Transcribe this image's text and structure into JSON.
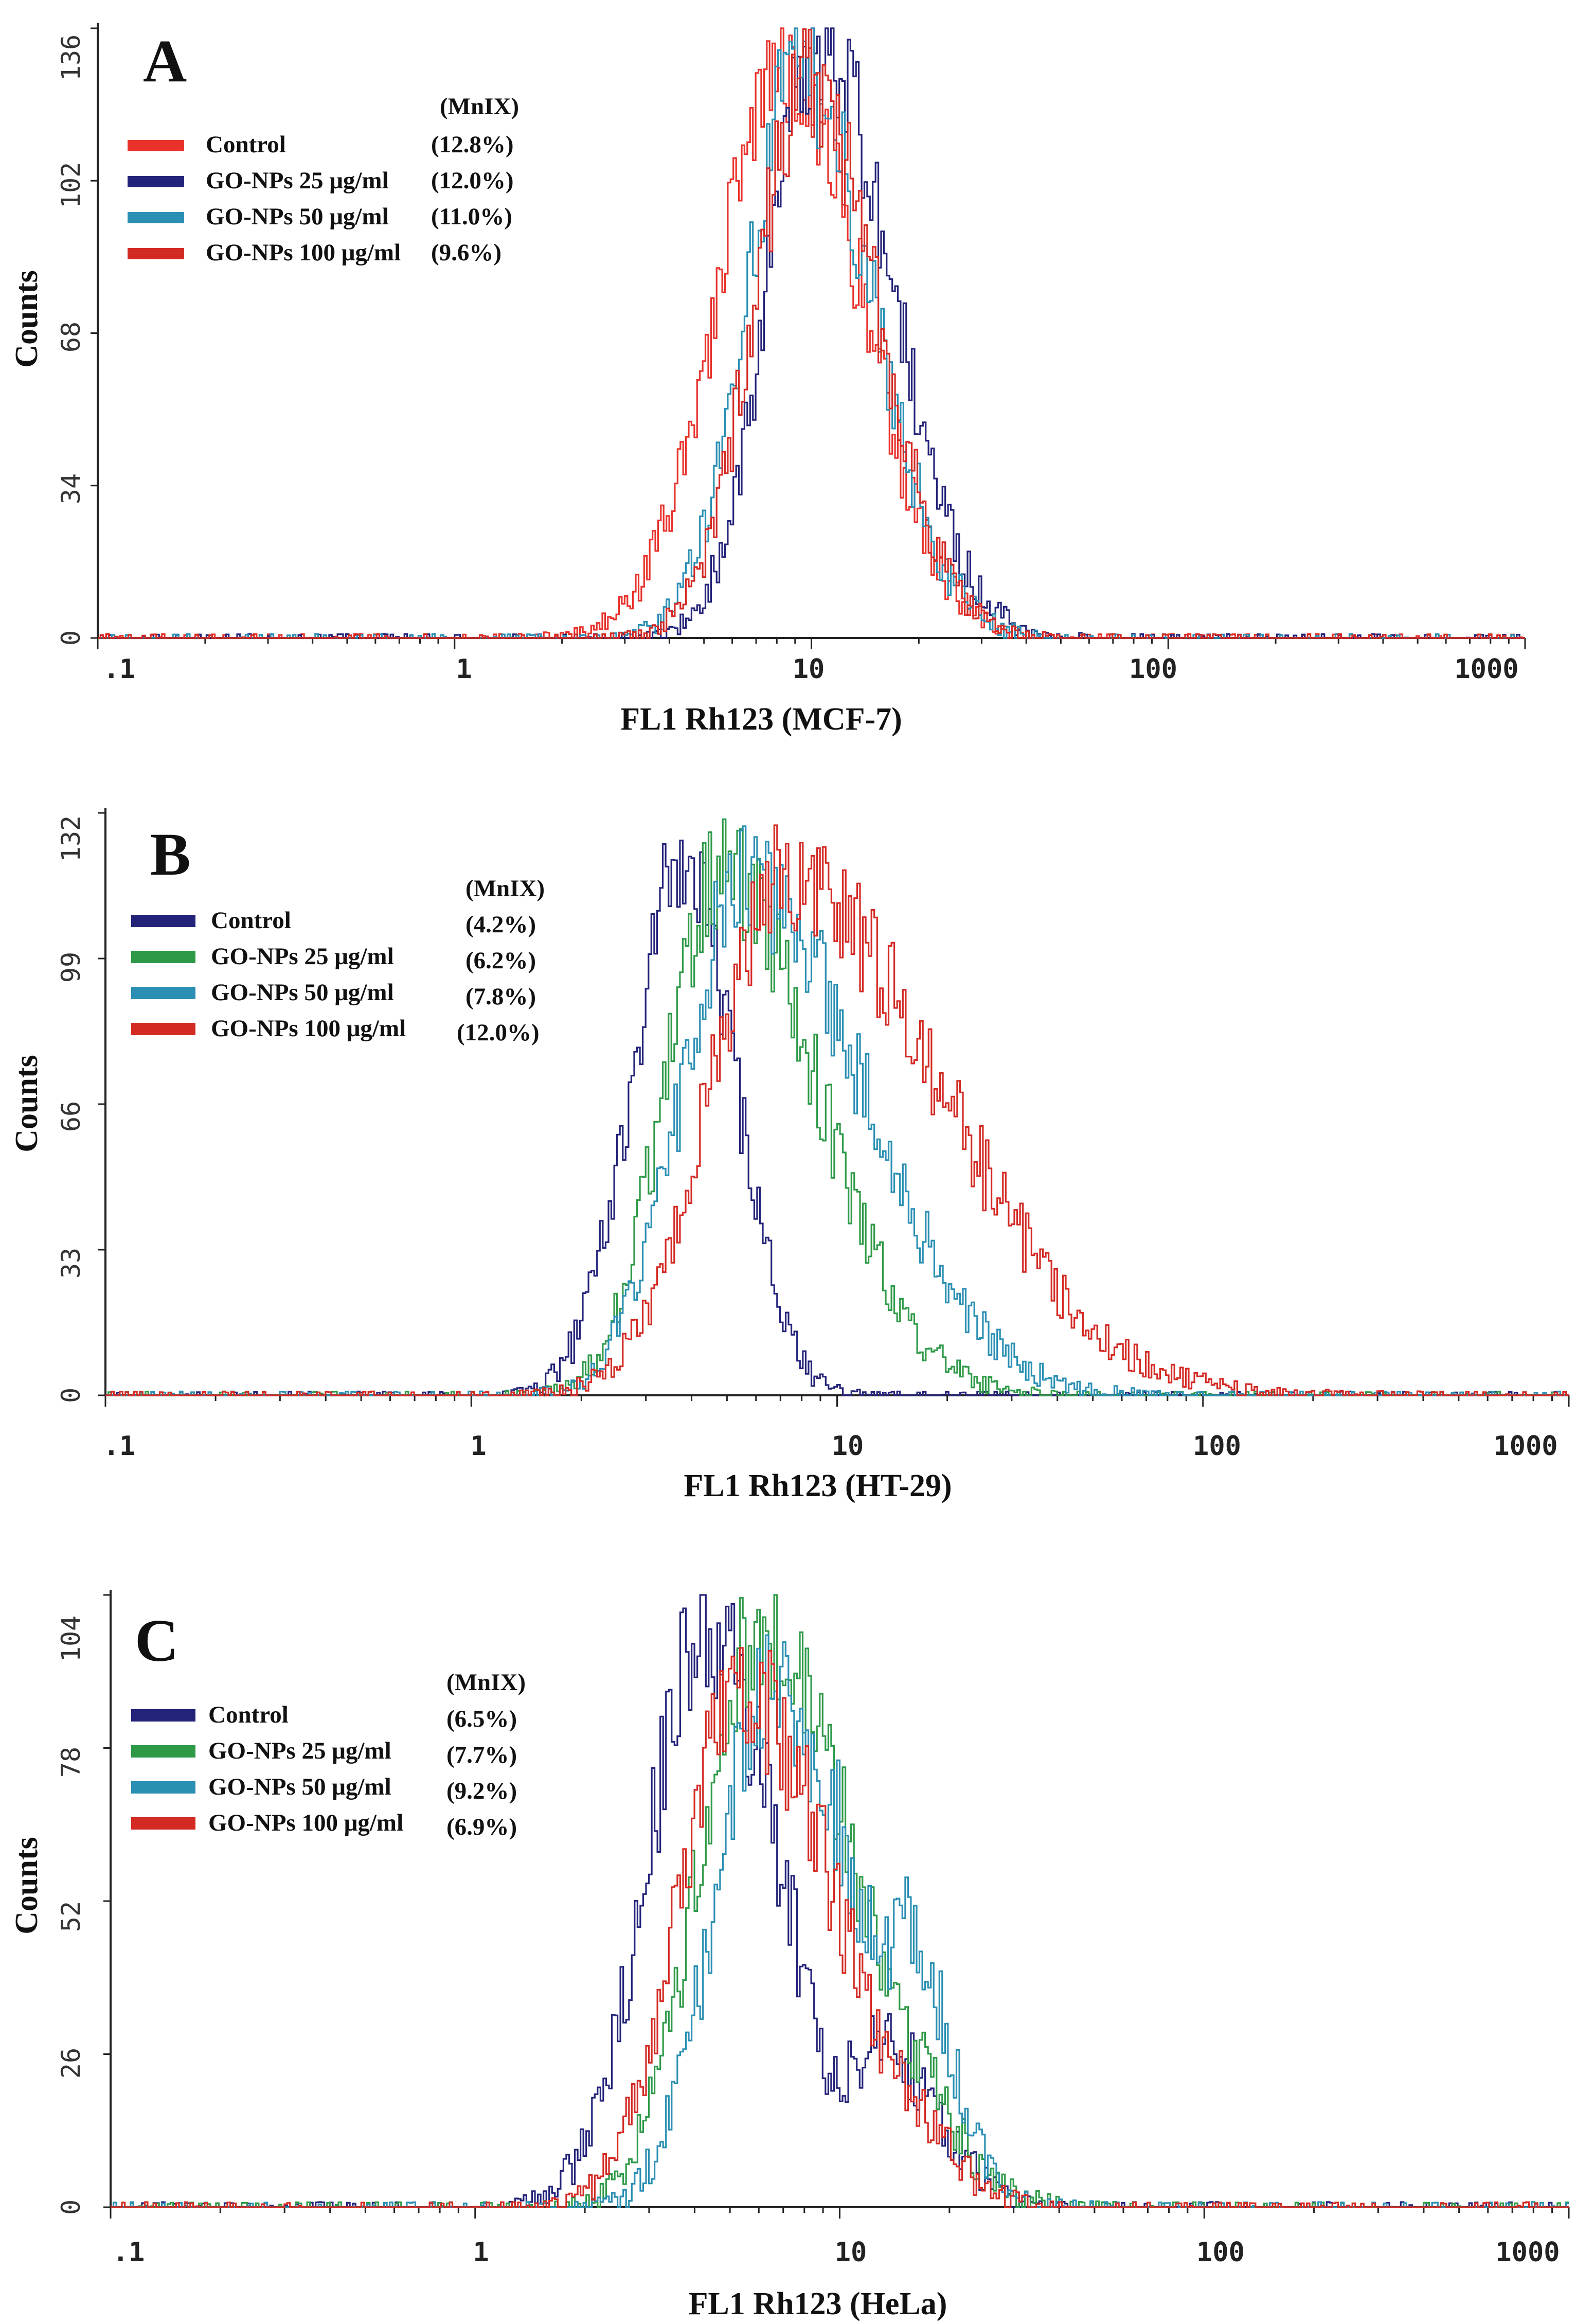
{
  "colors": {
    "control_red": "#e8322b",
    "navy": "#23237a",
    "teal": "#2a8fb3",
    "red": "#d42a24",
    "green": "#2e9a48",
    "orange": "#e86a1a",
    "axis": "#222222"
  },
  "chart_data": [
    {
      "type": "histogram",
      "panel": "A",
      "title": "",
      "xlabel": "FL1 Rh123 (MCF-7)",
      "ylabel": "Counts",
      "x_scale": "log",
      "xlim": [
        0.1,
        1000
      ],
      "ylim": [
        0,
        136
      ],
      "x_ticks": [
        ".1",
        "1",
        "10",
        "100",
        "1000"
      ],
      "y_ticks": [
        "0",
        "34",
        "68",
        "102",
        "136"
      ],
      "legend_header": "(MnIX)",
      "series": [
        {
          "name": "Control",
          "value_label": "(12.8%)",
          "color": "#e8322b",
          "peak_x": 8.5,
          "peak_y": 128,
          "sigma_left": 0.19,
          "sigma_right": 0.21
        },
        {
          "name": "GO-NPs 25 μg/ml",
          "value_label": "(12.0%)",
          "color": "#23237a",
          "peak_x": 10.5,
          "peak_y": 134,
          "sigma_left": 0.14,
          "sigma_right": 0.2
        },
        {
          "name": "GO-NPs 50 μg/ml",
          "value_label": "(11.0%)",
          "color": "#2a8fb3",
          "peak_x": 9.3,
          "peak_y": 127,
          "sigma_left": 0.15,
          "sigma_right": 0.2
        },
        {
          "name": "GO-NPs 100 μg/ml",
          "value_label": "(9.6%)",
          "color": "#d42a24",
          "peak_x": 9.8,
          "peak_y": 125,
          "sigma_left": 0.15,
          "sigma_right": 0.19
        }
      ]
    },
    {
      "type": "histogram",
      "panel": "B",
      "title": "",
      "xlabel": "FL1 Rh123 (HT-29)",
      "ylabel": "Counts",
      "x_scale": "log",
      "xlim": [
        0.1,
        1000
      ],
      "ylim": [
        0,
        132
      ],
      "x_ticks": [
        ".1",
        "1",
        "10",
        "100",
        "1000"
      ],
      "y_ticks": [
        "0",
        "33",
        "66",
        "99",
        "132"
      ],
      "legend_header": "(MnIX)",
      "series": [
        {
          "name": "Control",
          "value_label": "(4.2%)",
          "color": "#23237a",
          "peak_x": 3.8,
          "peak_y": 120,
          "sigma_left": 0.14,
          "sigma_right": 0.14
        },
        {
          "name": "GO-NPs 25 μg/ml",
          "value_label": "(6.2%)",
          "color": "#2e9a48",
          "peak_x": 4.8,
          "peak_y": 118,
          "sigma_left": 0.15,
          "sigma_right": 0.26
        },
        {
          "name": "GO-NPs 50 μg/ml",
          "value_label": "(7.8%)",
          "color": "#2a8fb3",
          "peak_x": 5.6,
          "peak_y": 116,
          "sigma_left": 0.17,
          "sigma_right": 0.32
        },
        {
          "name": "GO-NPs 100 μg/ml",
          "value_label": "(12.0%)",
          "color": "#d42a24",
          "peak_x": 7.2,
          "peak_y": 118,
          "sigma_left": 0.2,
          "sigma_right": 0.42
        }
      ]
    },
    {
      "type": "histogram",
      "panel": "C",
      "title": "",
      "xlabel": "FL1 Rh123 (HeLa)",
      "ylabel": "Counts",
      "x_scale": "log",
      "xlim": [
        0.1,
        1000
      ],
      "ylim": [
        0,
        104
      ],
      "x_ticks": [
        ".1",
        "1",
        "10",
        "100",
        "1000"
      ],
      "y_ticks": [
        "0",
        "26",
        "52",
        "78",
        "104"
      ],
      "legend_header": "(MnIX)",
      "series": [
        {
          "name": "Control",
          "value_label": "(6.5%)",
          "color": "#23237a",
          "peak_x": 4.3,
          "peak_y": 98,
          "sigma_left": 0.16,
          "sigma_right": 0.2,
          "shoulder_x": 13,
          "shoulder_y": 28,
          "shoulder_sigma": 0.15
        },
        {
          "name": "GO-NPs 25 μg/ml",
          "value_label": "(7.7%)",
          "color": "#2e9a48",
          "peak_x": 6.0,
          "peak_y": 98,
          "sigma_left": 0.16,
          "sigma_right": 0.26,
          "shoulder_x": 14,
          "shoulder_y": 30,
          "shoulder_sigma": 0.14
        },
        {
          "name": "GO-NPs 50 μg/ml",
          "value_label": "(9.2%)",
          "color": "#2a8fb3",
          "peak_x": 6.5,
          "peak_y": 88,
          "sigma_left": 0.15,
          "sigma_right": 0.24,
          "shoulder_x": 15,
          "shoulder_y": 48,
          "shoulder_sigma": 0.12
        },
        {
          "name": "GO-NPs 100 μg/ml",
          "value_label": "(6.9%)",
          "color": "#d42a24",
          "peak_x": 5.3,
          "peak_y": 88,
          "sigma_left": 0.16,
          "sigma_right": 0.26,
          "shoulder_x": 13,
          "shoulder_y": 25,
          "shoulder_sigma": 0.14
        }
      ]
    }
  ]
}
